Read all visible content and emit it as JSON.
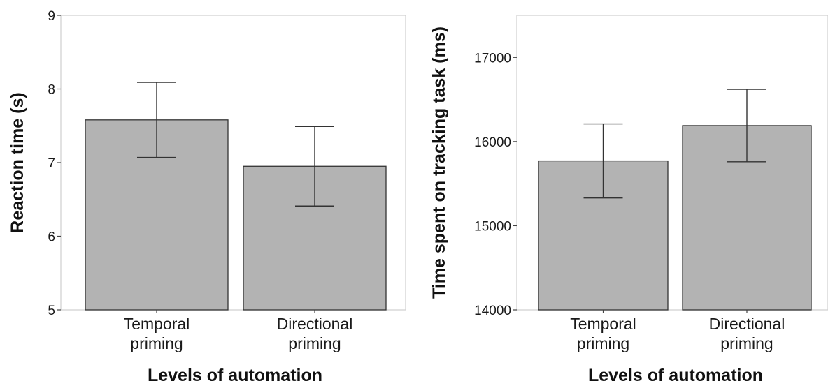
{
  "chart_data": [
    {
      "type": "bar",
      "categories": [
        [
          "Temporal",
          "priming"
        ],
        [
          "Directional",
          "priming"
        ]
      ],
      "values": [
        7.58,
        6.95
      ],
      "error_low": [
        7.07,
        6.41
      ],
      "error_high": [
        8.09,
        7.49
      ],
      "xlabel": "Levels of automation",
      "ylabel": "Reaction time (s)",
      "ylim": [
        5,
        9
      ],
      "yticks": [
        5,
        6,
        7,
        8,
        9
      ],
      "bar_color": "#b3b3b3",
      "grid": false
    },
    {
      "type": "bar",
      "categories": [
        [
          "Temporal",
          "priming"
        ],
        [
          "Directional",
          "priming"
        ]
      ],
      "values": [
        15770,
        16190
      ],
      "error_low": [
        15330,
        15760
      ],
      "error_high": [
        16210,
        16620
      ],
      "xlabel": "Levels of automation",
      "ylabel": "Time spent on tracking task (ms)",
      "ylim": [
        14000,
        17500
      ],
      "yticks": [
        14000,
        15000,
        16000,
        17000
      ],
      "bar_color": "#b3b3b3",
      "grid": false
    }
  ]
}
